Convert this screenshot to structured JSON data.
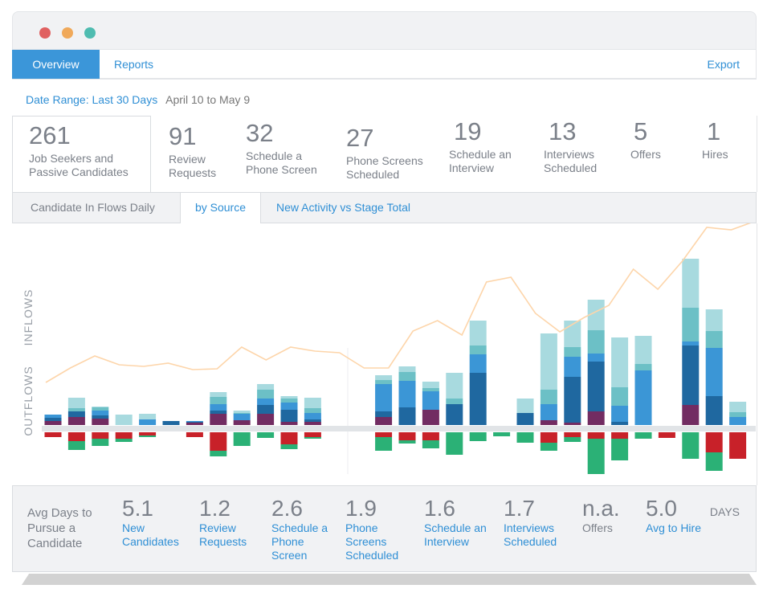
{
  "window": {
    "controls": [
      "close-dot",
      "minimize-dot",
      "maximize-dot"
    ],
    "control_colors": [
      "#e06060",
      "#f0a95a",
      "#4fbcb0"
    ]
  },
  "nav": {
    "tabs": [
      {
        "label": "Overview",
        "active": true
      },
      {
        "label": "Reports",
        "active": false
      }
    ],
    "export_label": "Export"
  },
  "date_range": {
    "label": "Date Range: Last 30 Days",
    "value": "April 10 to May 9"
  },
  "kpis": [
    {
      "value": "261",
      "label": "Job Seekers and Passive Candidates"
    },
    {
      "value": "91",
      "label": "Review Requests"
    },
    {
      "value": "32",
      "label": "Schedule a Phone Screen"
    },
    {
      "value": "27",
      "label": "Phone Screens Scheduled"
    },
    {
      "value": "19",
      "label": "Schedule an Interview"
    },
    {
      "value": "13",
      "label": "Interviews Scheduled"
    },
    {
      "value": "5",
      "label": "Offers"
    },
    {
      "value": "1",
      "label": "Hires"
    }
  ],
  "subtabs": [
    {
      "label": "Candidate In Flows Daily",
      "active": false
    },
    {
      "label": "by Source",
      "active": true
    },
    {
      "label": "New Activity vs Stage Total",
      "active": false
    }
  ],
  "colors": {
    "accent": "#2f8fd5",
    "purple": "#722c62",
    "dark_blue": "#1f68a0",
    "blue": "#3b96d6",
    "teal": "#6cc0c6",
    "light_teal": "#a8dadf",
    "red": "#c82129",
    "green": "#2bb176",
    "line": "#fdd5aa"
  },
  "chart_data": {
    "type": "bar",
    "title": "",
    "axis_labels": {
      "inflows": "INFLOWS",
      "outflows": "OUTFLOWS"
    },
    "x": [
      1,
      2,
      3,
      4,
      5,
      6,
      7,
      8,
      9,
      10,
      11,
      12,
      13,
      14,
      15,
      16,
      17,
      18,
      19,
      20,
      21,
      22,
      23,
      24,
      25,
      26,
      27,
      28,
      29,
      30
    ],
    "inflow_series": [
      {
        "name": "purple",
        "values": [
          5,
          10,
          8,
          0,
          0,
          0,
          3,
          14,
          6,
          14,
          4,
          4,
          0,
          0,
          10,
          0,
          19,
          0,
          0,
          0,
          0,
          6,
          3,
          17,
          0,
          0,
          0,
          25,
          0,
          0
        ]
      },
      {
        "name": "dark_blue",
        "values": [
          4,
          7,
          4,
          0,
          0,
          5,
          1,
          4,
          0,
          11,
          15,
          3,
          0,
          0,
          7,
          22,
          0,
          26,
          65,
          0,
          15,
          0,
          57,
          62,
          4,
          0,
          0,
          74,
          36,
          0
        ]
      },
      {
        "name": "blue",
        "values": [
          4,
          0,
          6,
          0,
          7,
          0,
          1,
          8,
          8,
          8,
          9,
          8,
          0,
          0,
          34,
          33,
          23,
          0,
          23,
          0,
          0,
          20,
          25,
          10,
          20,
          68,
          0,
          5,
          60,
          10
        ]
      },
      {
        "name": "teal",
        "values": [
          0,
          4,
          4,
          0,
          0,
          0,
          0,
          9,
          1,
          11,
          5,
          6,
          0,
          0,
          5,
          11,
          4,
          7,
          11,
          0,
          0,
          18,
          12,
          29,
          23,
          8,
          0,
          42,
          21,
          6
        ]
      },
      {
        "name": "light_teal",
        "values": [
          0,
          13,
          1,
          13,
          7,
          0,
          0,
          6,
          3,
          7,
          3,
          13,
          0,
          0,
          6,
          7,
          8,
          32,
          31,
          0,
          18,
          70,
          33,
          38,
          62,
          35,
          0,
          61,
          27,
          13
        ]
      }
    ],
    "outflow_series": [
      {
        "name": "red",
        "values": [
          6,
          11,
          8,
          8,
          4,
          0,
          6,
          23,
          0,
          0,
          15,
          6,
          0,
          0,
          6,
          10,
          10,
          0,
          0,
          0,
          0,
          13,
          6,
          8,
          8,
          0,
          0,
          0,
          25,
          33
        ]
      },
      {
        "name": "green",
        "values": [
          0,
          11,
          9,
          4,
          2,
          0,
          0,
          7,
          17,
          7,
          6,
          2,
          0,
          0,
          17,
          4,
          10,
          28,
          11,
          5,
          13,
          10,
          6,
          44,
          27,
          8,
          0,
          33,
          23,
          0
        ]
      },
      {
        "name": "red_lower",
        "values": [
          0,
          0,
          0,
          0,
          0,
          0,
          0,
          0,
          0,
          0,
          0,
          0,
          0,
          0,
          0,
          0,
          0,
          0,
          0,
          0,
          0,
          0,
          0,
          0,
          0,
          0,
          7,
          0,
          0,
          0
        ]
      }
    ],
    "green_first": [
      false,
      false,
      false,
      false,
      false,
      false,
      false,
      false,
      false,
      false,
      false,
      false,
      false,
      false,
      false,
      false,
      false,
      false,
      false,
      true,
      true,
      false,
      false,
      false,
      false,
      true,
      true,
      false,
      false,
      false
    ],
    "line_series": {
      "name": "stage total",
      "values": [
        54,
        72,
        87,
        76,
        74,
        78,
        70,
        71,
        98,
        82,
        98,
        93,
        91,
        72,
        72,
        118,
        131,
        113,
        179,
        185,
        140,
        117,
        135,
        150,
        195,
        170,
        205,
        247,
        244,
        255
      ]
    }
  },
  "footer": {
    "intro": "Avg Days to Pursue a Candidate",
    "metrics": [
      {
        "value": "5.1",
        "label": "New Candidates",
        "link": true
      },
      {
        "value": "1.2",
        "label": "Review Requests",
        "link": true
      },
      {
        "value": "2.6",
        "label": "Schedule a Phone Screen",
        "link": true
      },
      {
        "value": "1.9",
        "label": "Phone Screens Scheduled",
        "link": true
      },
      {
        "value": "1.6",
        "label": "Schedule an Interview",
        "link": true
      },
      {
        "value": "1.7",
        "label": "Interviews Scheduled",
        "link": true
      },
      {
        "value": "n.a.",
        "label": "Offers",
        "link": false
      },
      {
        "value": "5.0",
        "label": "Avg to Hire",
        "link": true
      }
    ],
    "unit": "DAYS"
  }
}
